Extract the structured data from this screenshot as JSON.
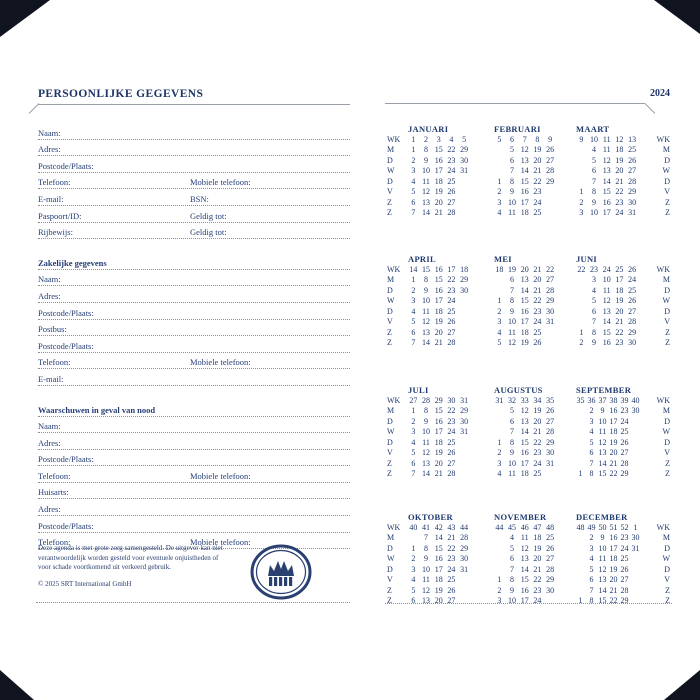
{
  "colors": {
    "navy": "#243d76",
    "rule_gray": "#9aa0a8",
    "dotted_gray": "#8f8f8f",
    "corner_dark": "#10141f"
  },
  "page_left": {
    "title": "PERSOONLIJKE GEGEVENS",
    "sections": [
      {
        "heading": null,
        "rows": [
          [
            "Naam:"
          ],
          [
            "Adres:"
          ],
          [
            "Postcode/Plaats:"
          ],
          [
            "Telefoon:",
            "Mobiele telefoon:"
          ],
          [
            "E-mail:",
            "BSN:"
          ],
          [
            "Paspoort/ID:",
            "Geldig tot:"
          ],
          [
            "Rijbewijs:",
            "Geldig tot:"
          ]
        ]
      },
      {
        "heading": "Zakelijke gegevens",
        "rows": [
          [
            "Naam:"
          ],
          [
            "Adres:"
          ],
          [
            "Postcode/Plaats:"
          ],
          [
            "Postbus:"
          ],
          [
            "Postcode/Plaats:"
          ],
          [
            "Telefoon:",
            "Mobiele telefoon:"
          ],
          [
            "E-mail:"
          ]
        ]
      },
      {
        "heading": "Waarschuwen in geval van nood",
        "rows": [
          [
            "Naam:"
          ],
          [
            "Adres:"
          ],
          [
            "Postcode/Plaats:"
          ],
          [
            "Telefoon:",
            "Mobiele telefoon:"
          ],
          [
            "Huisarts:"
          ],
          [
            "Adres:"
          ],
          [
            "Postcode/Plaats:"
          ],
          [
            "Telefoon:",
            "Mobiele telefoon:"
          ]
        ]
      }
    ],
    "disclaimer_lines": [
      "Deze agenda is met grote zorg samengesteld. De uitgever kan niet",
      "verantwoordelijk worden gesteld voor eventuele onjuistheden of",
      "voor schade voortkomend uit verkeerd gebruik."
    ],
    "copyright": "© 2025 SRT International GmbH",
    "logo_icon": "crown-oval-logo"
  },
  "page_right": {
    "year": "2024",
    "day_labels": [
      "WK",
      "M",
      "D",
      "W",
      "D",
      "V",
      "Z",
      "Z"
    ],
    "month_rows": [
      [
        {
          "name": "JANUARI",
          "wk": [
            "1",
            "2",
            "3",
            "4",
            "5"
          ],
          "days": [
            [
              "1",
              "8",
              "15",
              "22",
              "29"
            ],
            [
              "2",
              "9",
              "16",
              "23",
              "30"
            ],
            [
              "3",
              "10",
              "17",
              "24",
              "31"
            ],
            [
              "4",
              "11",
              "18",
              "25",
              ""
            ],
            [
              "5",
              "12",
              "19",
              "26",
              ""
            ],
            [
              "6",
              "13",
              "20",
              "27",
              ""
            ],
            [
              "7",
              "14",
              "21",
              "28",
              ""
            ]
          ]
        },
        {
          "name": "FEBRUARI",
          "wk": [
            "5",
            "6",
            "7",
            "8",
            "9"
          ],
          "days": [
            [
              "",
              "5",
              "12",
              "19",
              "26"
            ],
            [
              "",
              "6",
              "13",
              "20",
              "27"
            ],
            [
              "",
              "7",
              "14",
              "21",
              "28"
            ],
            [
              "1",
              "8",
              "15",
              "22",
              "29"
            ],
            [
              "2",
              "9",
              "16",
              "23",
              ""
            ],
            [
              "3",
              "10",
              "17",
              "24",
              ""
            ],
            [
              "4",
              "11",
              "18",
              "25",
              ""
            ]
          ]
        },
        {
          "name": "MAART",
          "wk": [
            "9",
            "10",
            "11",
            "12",
            "13"
          ],
          "days": [
            [
              "",
              "4",
              "11",
              "18",
              "25"
            ],
            [
              "",
              "5",
              "12",
              "19",
              "26"
            ],
            [
              "",
              "6",
              "13",
              "20",
              "27"
            ],
            [
              "",
              "7",
              "14",
              "21",
              "28"
            ],
            [
              "1",
              "8",
              "15",
              "22",
              "29"
            ],
            [
              "2",
              "9",
              "16",
              "23",
              "30"
            ],
            [
              "3",
              "10",
              "17",
              "24",
              "31"
            ]
          ]
        }
      ],
      [
        {
          "name": "APRIL",
          "wk": [
            "14",
            "15",
            "16",
            "17",
            "18"
          ],
          "days": [
            [
              "1",
              "8",
              "15",
              "22",
              "29"
            ],
            [
              "2",
              "9",
              "16",
              "23",
              "30"
            ],
            [
              "3",
              "10",
              "17",
              "24",
              ""
            ],
            [
              "4",
              "11",
              "18",
              "25",
              ""
            ],
            [
              "5",
              "12",
              "19",
              "26",
              ""
            ],
            [
              "6",
              "13",
              "20",
              "27",
              ""
            ],
            [
              "7",
              "14",
              "21",
              "28",
              ""
            ]
          ]
        },
        {
          "name": "MEI",
          "wk": [
            "18",
            "19",
            "20",
            "21",
            "22"
          ],
          "days": [
            [
              "",
              "6",
              "13",
              "20",
              "27"
            ],
            [
              "",
              "7",
              "14",
              "21",
              "28"
            ],
            [
              "1",
              "8",
              "15",
              "22",
              "29"
            ],
            [
              "2",
              "9",
              "16",
              "23",
              "30"
            ],
            [
              "3",
              "10",
              "17",
              "24",
              "31"
            ],
            [
              "4",
              "11",
              "18",
              "25",
              ""
            ],
            [
              "5",
              "12",
              "19",
              "26",
              ""
            ]
          ]
        },
        {
          "name": "JUNI",
          "wk": [
            "22",
            "23",
            "24",
            "25",
            "26"
          ],
          "days": [
            [
              "",
              "3",
              "10",
              "17",
              "24"
            ],
            [
              "",
              "4",
              "11",
              "18",
              "25"
            ],
            [
              "",
              "5",
              "12",
              "19",
              "26"
            ],
            [
              "",
              "6",
              "13",
              "20",
              "27"
            ],
            [
              "",
              "7",
              "14",
              "21",
              "28"
            ],
            [
              "1",
              "8",
              "15",
              "22",
              "29"
            ],
            [
              "2",
              "9",
              "16",
              "23",
              "30"
            ]
          ]
        }
      ],
      [
        {
          "name": "JULI",
          "wk": [
            "27",
            "28",
            "29",
            "30",
            "31"
          ],
          "days": [
            [
              "1",
              "8",
              "15",
              "22",
              "29"
            ],
            [
              "2",
              "9",
              "16",
              "23",
              "30"
            ],
            [
              "3",
              "10",
              "17",
              "24",
              "31"
            ],
            [
              "4",
              "11",
              "18",
              "25",
              ""
            ],
            [
              "5",
              "12",
              "19",
              "26",
              ""
            ],
            [
              "6",
              "13",
              "20",
              "27",
              ""
            ],
            [
              "7",
              "14",
              "21",
              "28",
              ""
            ]
          ]
        },
        {
          "name": "AUGUSTUS",
          "wk": [
            "31",
            "32",
            "33",
            "34",
            "35"
          ],
          "days": [
            [
              "",
              "5",
              "12",
              "19",
              "26"
            ],
            [
              "",
              "6",
              "13",
              "20",
              "27"
            ],
            [
              "",
              "7",
              "14",
              "21",
              "28"
            ],
            [
              "1",
              "8",
              "15",
              "22",
              "29"
            ],
            [
              "2",
              "9",
              "16",
              "23",
              "30"
            ],
            [
              "3",
              "10",
              "17",
              "24",
              "31"
            ],
            [
              "4",
              "11",
              "18",
              "25",
              ""
            ]
          ]
        },
        {
          "name": "SEPTEMBER",
          "wk": [
            "35",
            "36",
            "37",
            "38",
            "39",
            "40"
          ],
          "days": [
            [
              "",
              "2",
              "9",
              "16",
              "23",
              "30"
            ],
            [
              "",
              "3",
              "10",
              "17",
              "24",
              ""
            ],
            [
              "",
              "4",
              "11",
              "18",
              "25",
              ""
            ],
            [
              "",
              "5",
              "12",
              "19",
              "26",
              ""
            ],
            [
              "",
              "6",
              "13",
              "20",
              "27",
              ""
            ],
            [
              "",
              "7",
              "14",
              "21",
              "28",
              ""
            ],
            [
              "1",
              "8",
              "15",
              "22",
              "29",
              ""
            ]
          ]
        }
      ],
      [
        {
          "name": "OKTOBER",
          "wk": [
            "40",
            "41",
            "42",
            "43",
            "44"
          ],
          "days": [
            [
              "",
              "7",
              "14",
              "21",
              "28"
            ],
            [
              "1",
              "8",
              "15",
              "22",
              "29"
            ],
            [
              "2",
              "9",
              "16",
              "23",
              "30"
            ],
            [
              "3",
              "10",
              "17",
              "24",
              "31"
            ],
            [
              "4",
              "11",
              "18",
              "25",
              ""
            ],
            [
              "5",
              "12",
              "19",
              "26",
              ""
            ],
            [
              "6",
              "13",
              "20",
              "27",
              ""
            ]
          ]
        },
        {
          "name": "NOVEMBER",
          "wk": [
            "44",
            "45",
            "46",
            "47",
            "48"
          ],
          "days": [
            [
              "",
              "4",
              "11",
              "18",
              "25"
            ],
            [
              "",
              "5",
              "12",
              "19",
              "26"
            ],
            [
              "",
              "6",
              "13",
              "20",
              "27"
            ],
            [
              "",
              "7",
              "14",
              "21",
              "28"
            ],
            [
              "1",
              "8",
              "15",
              "22",
              "29"
            ],
            [
              "2",
              "9",
              "16",
              "23",
              "30"
            ],
            [
              "3",
              "10",
              "17",
              "24",
              ""
            ]
          ]
        },
        {
          "name": "DECEMBER",
          "wk": [
            "48",
            "49",
            "50",
            "51",
            "52",
            "1"
          ],
          "days": [
            [
              "",
              "2",
              "9",
              "16",
              "23",
              "30"
            ],
            [
              "",
              "3",
              "10",
              "17",
              "24",
              "31"
            ],
            [
              "",
              "4",
              "11",
              "18",
              "25",
              ""
            ],
            [
              "",
              "5",
              "12",
              "19",
              "26",
              ""
            ],
            [
              "",
              "6",
              "13",
              "20",
              "27",
              ""
            ],
            [
              "",
              "7",
              "14",
              "21",
              "28",
              ""
            ],
            [
              "1",
              "8",
              "15",
              "22",
              "29",
              ""
            ]
          ]
        }
      ]
    ]
  }
}
